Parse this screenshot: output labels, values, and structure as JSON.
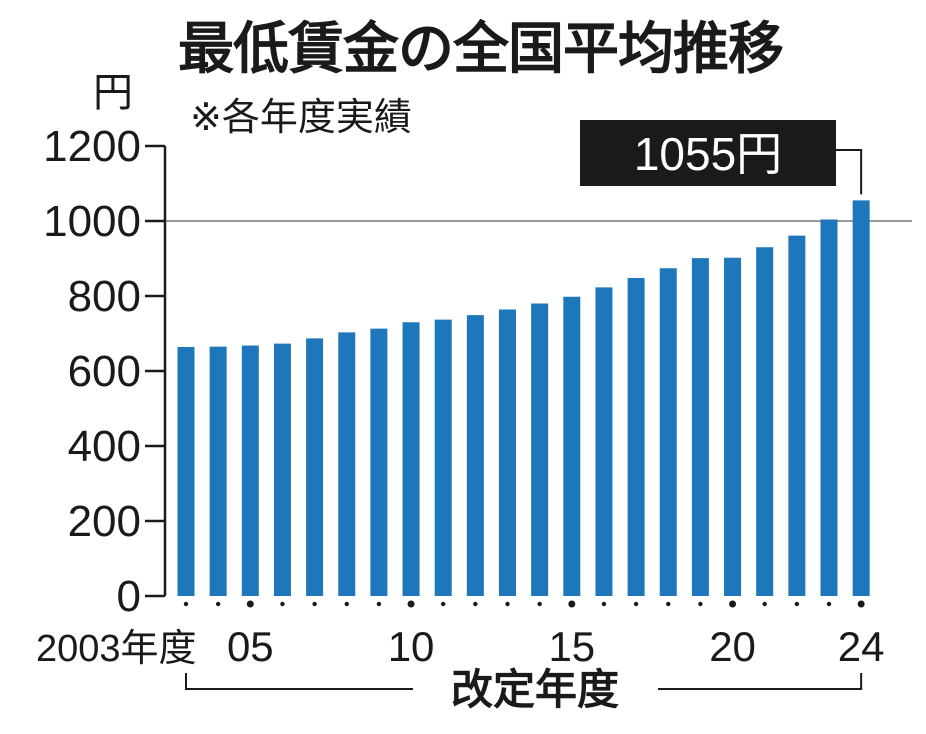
{
  "chart_data": {
    "type": "bar",
    "title": "最低賃金の全国平均推移",
    "subtitle": "※各年度実績",
    "unit": "円",
    "xlabel": "改定年度",
    "categories": [
      "2003",
      "2004",
      "2005",
      "2006",
      "2007",
      "2008",
      "2009",
      "2010",
      "2011",
      "2012",
      "2013",
      "2014",
      "2015",
      "2016",
      "2017",
      "2018",
      "2019",
      "2020",
      "2021",
      "2022",
      "2023",
      "2024"
    ],
    "x_tick_labels": [
      {
        "category": "2003",
        "label": "2003年度"
      },
      {
        "category": "2005",
        "label": "05"
      },
      {
        "category": "2010",
        "label": "10"
      },
      {
        "category": "2015",
        "label": "15"
      },
      {
        "category": "2020",
        "label": "20"
      },
      {
        "category": "2024",
        "label": "24"
      }
    ],
    "values": [
      664,
      665,
      668,
      673,
      687,
      703,
      713,
      730,
      737,
      749,
      764,
      780,
      798,
      823,
      848,
      874,
      901,
      902,
      930,
      961,
      1004,
      1055
    ],
    "ylim": [
      0,
      1200
    ],
    "yticks": [
      0,
      200,
      400,
      600,
      800,
      1000,
      1200
    ],
    "reference_line": 1000,
    "annotation": {
      "category": "2024",
      "text": "1055円"
    },
    "bar_color": "#1f77bb",
    "grid": false
  }
}
